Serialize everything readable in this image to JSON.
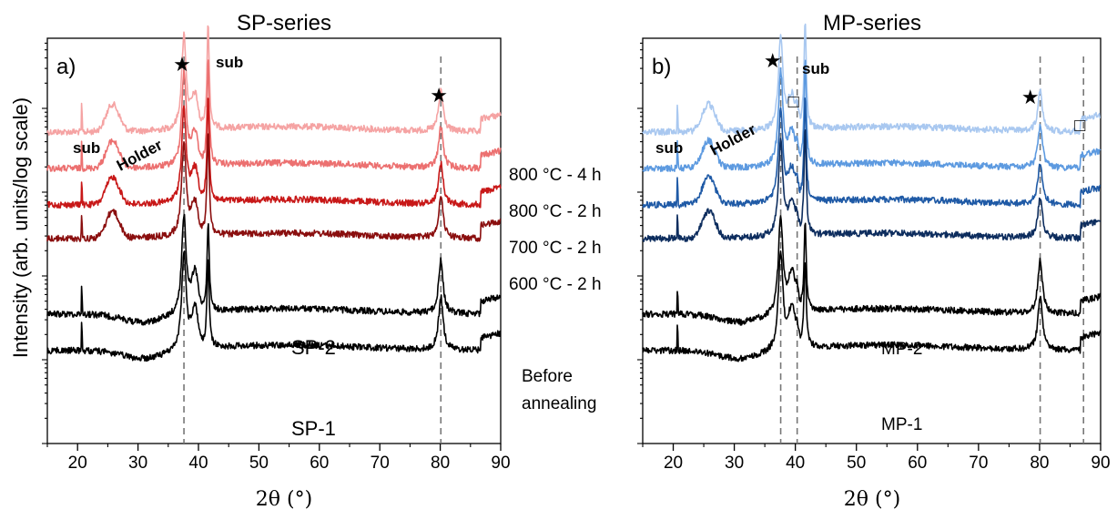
{
  "y_axis_label": "Intensity (arb. units/log scale)",
  "middle_labels": {
    "conditions": [
      "800 °C - 4 h",
      "800 °C - 2 h",
      "700 °C - 2 h",
      "600 °C - 2 h"
    ],
    "before_line1": "Before",
    "before_line2": "annealing"
  },
  "chart_data": [
    {
      "type": "line",
      "title": "SP-series",
      "panel_label": "a)",
      "xlabel": "2θ (°)",
      "ylabel": "Intensity (arb. units/log scale)",
      "y_scale": "log",
      "xlim": [
        15,
        90
      ],
      "xticks": [
        20,
        30,
        40,
        50,
        60,
        70,
        80,
        90
      ],
      "grid": false,
      "dashed_reference_lines_x": [
        37.6,
        80.1
      ],
      "peak_markers": [
        {
          "symbol": "★",
          "x": 37.6
        },
        {
          "symbol": "★",
          "x": 80.1
        }
      ],
      "annotations": [
        "sub",
        "Holder",
        "sub"
      ],
      "series": [
        {
          "name": "800 °C - 4 h",
          "color": "#f5a3a3",
          "baseline": 145,
          "holder": true
        },
        {
          "name": "800 °C - 2 h",
          "color": "#ec7070",
          "baseline": 185,
          "holder": true
        },
        {
          "name": "700 °C - 2 h",
          "color": "#c81818",
          "baseline": 225,
          "holder": true
        },
        {
          "name": "600 °C - 2 h",
          "color": "#8a0e0e",
          "baseline": 262,
          "holder": true
        },
        {
          "name": "SP-2",
          "color": "#000000",
          "baseline": 345,
          "holder": false
        },
        {
          "name": "SP-1",
          "color": "#000000",
          "baseline": 385,
          "holder": false
        }
      ]
    },
    {
      "type": "line",
      "title": "MP-series",
      "panel_label": "b)",
      "xlabel": "2θ (°)",
      "ylabel": "Intensity (arb. units/log scale)",
      "y_scale": "log",
      "xlim": [
        15,
        90
      ],
      "xticks": [
        20,
        30,
        40,
        50,
        60,
        70,
        80,
        90
      ],
      "grid": false,
      "dashed_reference_lines_x": [
        37.6,
        40.3,
        80.1,
        87.2
      ],
      "peak_markers": [
        {
          "symbol": "★",
          "x": 36.3
        },
        {
          "symbol": "□",
          "x": 40.3
        },
        {
          "symbol": "★",
          "x": 78.5
        },
        {
          "symbol": "□",
          "x": 87.2
        }
      ],
      "annotations": [
        "sub",
        "Holder",
        "sub"
      ],
      "series": [
        {
          "name": "800 °C - 4 h",
          "color": "#a9c8f0",
          "baseline": 145,
          "holder": true
        },
        {
          "name": "800 °C - 2 h",
          "color": "#5d9ae0",
          "baseline": 185,
          "holder": true
        },
        {
          "name": "700 °C - 2 h",
          "color": "#1f5aa6",
          "baseline": 225,
          "holder": true
        },
        {
          "name": "600 °C - 2 h",
          "color": "#0d2d5e",
          "baseline": 262,
          "holder": true
        },
        {
          "name": "MP-2",
          "color": "#000000",
          "baseline": 345,
          "holder": false
        },
        {
          "name": "MP-1",
          "color": "#000000",
          "baseline": 385,
          "holder": false
        }
      ]
    }
  ]
}
